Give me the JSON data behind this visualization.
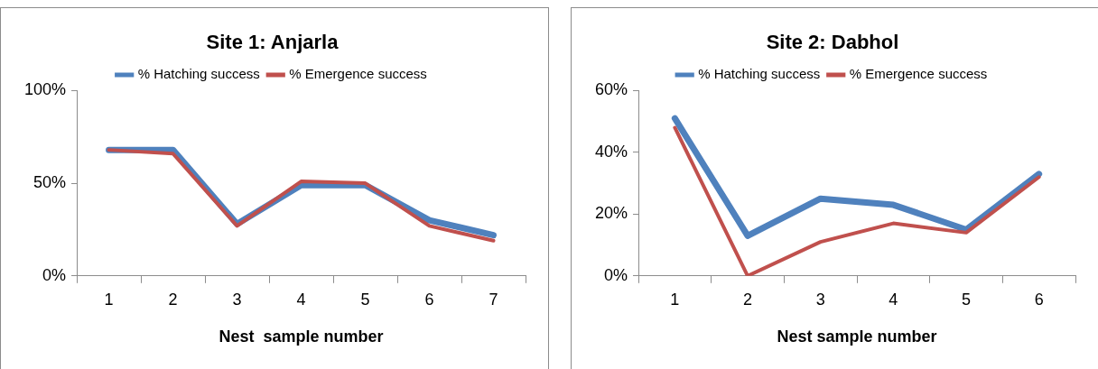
{
  "chart_data": [
    {
      "type": "line",
      "title": "Site 1: Anjarla",
      "xlabel": "Nest  sample number",
      "categories": [
        "1",
        "2",
        "3",
        "4",
        "5",
        "6",
        "7"
      ],
      "series": [
        {
          "name": "% Hatching success",
          "color": "#4f81bd",
          "values": [
            68,
            68,
            28,
            49,
            49,
            30,
            22
          ]
        },
        {
          "name": "% Emergence success",
          "color": "#c0504d",
          "values": [
            68,
            66,
            27,
            51,
            50,
            27,
            19
          ]
        }
      ],
      "ylim": [
        0,
        100
      ],
      "yticks": [
        {
          "value": 0,
          "label": "0%"
        },
        {
          "value": 50,
          "label": "50%"
        },
        {
          "value": 100,
          "label": "100%"
        }
      ],
      "grid": false,
      "legend": "top",
      "marker": "none",
      "line_style": "solid"
    },
    {
      "type": "line",
      "title": "Site 2: Dabhol",
      "xlabel": "Nest sample number",
      "categories": [
        "1",
        "2",
        "3",
        "4",
        "5",
        "6"
      ],
      "series": [
        {
          "name": "% Hatching success",
          "color": "#4f81bd",
          "values": [
            51,
            13,
            25,
            23,
            15,
            33
          ]
        },
        {
          "name": "% Emergence success",
          "color": "#c0504d",
          "values": [
            48,
            0,
            11,
            17,
            14,
            32
          ]
        }
      ],
      "ylim": [
        0,
        60
      ],
      "yticks": [
        {
          "value": 0,
          "label": "0%"
        },
        {
          "value": 20,
          "label": "20%"
        },
        {
          "value": 40,
          "label": "40%"
        },
        {
          "value": 60,
          "label": "60%"
        }
      ],
      "grid": false,
      "legend": "top",
      "marker": "none",
      "line_style": "solid"
    }
  ]
}
